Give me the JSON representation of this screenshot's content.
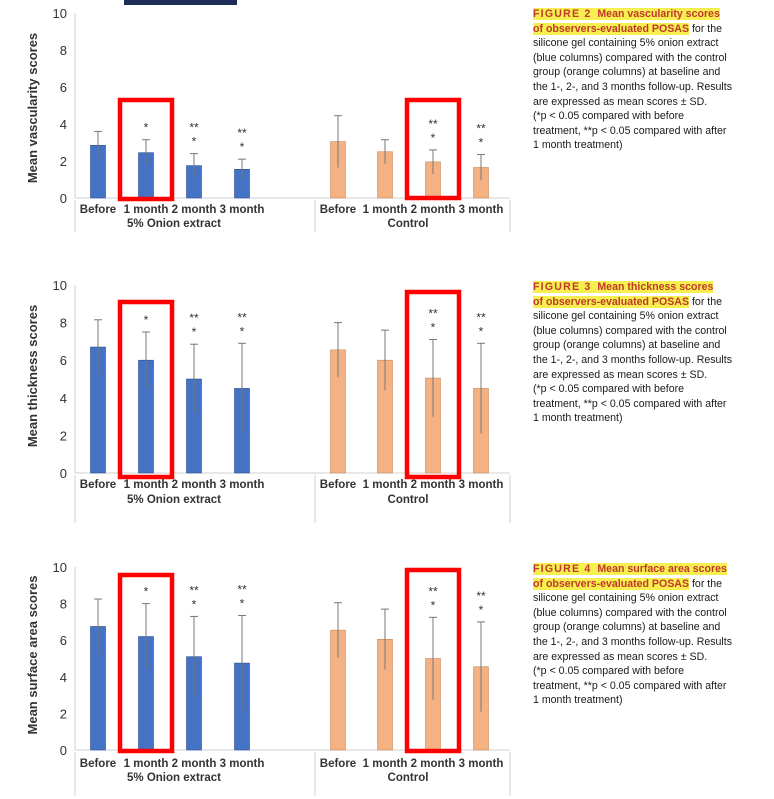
{
  "chart_data": [
    {
      "type": "bar",
      "ylabel": "Mean vascularity scores",
      "ylim": [
        0,
        10
      ],
      "yticks": [
        0,
        2,
        4,
        6,
        8,
        10
      ],
      "group_names": [
        "5% Onion extract",
        "Control"
      ],
      "categories": [
        "Before",
        "1 month",
        "2 month",
        "3 month"
      ],
      "series": [
        {
          "group": "5% Onion extract",
          "color": "#4472c4",
          "values": [
            2.85,
            2.45,
            1.75,
            1.55
          ],
          "sd": [
            0.75,
            0.7,
            0.65,
            0.55
          ],
          "annotations": [
            "",
            "*",
            "**\n*",
            "**\n*"
          ]
        },
        {
          "group": "Control",
          "color": "#f4b183",
          "values": [
            3.05,
            2.5,
            1.95,
            1.65
          ],
          "sd": [
            1.4,
            0.65,
            0.65,
            0.7
          ],
          "annotations": [
            "",
            "",
            "**\n*",
            "**\n*"
          ]
        }
      ],
      "highlighted": [
        "1 month (5% Onion extract)",
        "2 month (Control)"
      ],
      "grid": false
    },
    {
      "type": "bar",
      "ylabel": "Mean thickness scores",
      "ylim": [
        0,
        10
      ],
      "yticks": [
        0,
        2,
        4,
        6,
        8,
        10
      ],
      "group_names": [
        "5% Onion extract",
        "Control"
      ],
      "categories": [
        "Before",
        "1 month",
        "2 month",
        "3 month"
      ],
      "series": [
        {
          "group": "5% Onion extract",
          "color": "#4472c4",
          "values": [
            6.7,
            6.0,
            5.0,
            4.5
          ],
          "sd": [
            1.45,
            1.5,
            1.85,
            2.4
          ],
          "annotations": [
            "",
            "*",
            "**\n*",
            "**\n*"
          ]
        },
        {
          "group": "Control",
          "color": "#f4b183",
          "values": [
            6.55,
            6.0,
            5.05,
            4.5
          ],
          "sd": [
            1.45,
            1.6,
            2.05,
            2.4
          ],
          "annotations": [
            "",
            "",
            "**\n*",
            "**\n*"
          ]
        }
      ],
      "highlighted": [
        "1 month (5% Onion extract)",
        "2 month (Control)"
      ],
      "grid": false
    },
    {
      "type": "bar",
      "ylabel": "Mean surface area scores",
      "ylim": [
        0,
        10
      ],
      "yticks": [
        0,
        2,
        4,
        6,
        8,
        10
      ],
      "group_names": [
        "5% Onion extract",
        "Control"
      ],
      "categories": [
        "Before",
        "1 month",
        "2 month",
        "3 month"
      ],
      "series": [
        {
          "group": "5% Onion extract",
          "color": "#4472c4",
          "values": [
            6.75,
            6.2,
            5.1,
            4.75
          ],
          "sd": [
            1.5,
            1.8,
            2.2,
            2.6
          ],
          "annotations": [
            "",
            "*",
            "**\n*",
            "**\n*"
          ]
        },
        {
          "group": "Control",
          "color": "#f4b183",
          "values": [
            6.55,
            6.05,
            5.0,
            4.55
          ],
          "sd": [
            1.5,
            1.65,
            2.25,
            2.45
          ],
          "annotations": [
            "",
            "",
            "**\n*",
            "**\n*"
          ]
        }
      ],
      "highlighted": [
        "1 month (5% Onion extract)",
        "2 month (Control)"
      ],
      "grid": false
    }
  ],
  "captions": [
    {
      "fig": "FIGURE 2",
      "title_a": "Mean vascularity scores",
      "title_b": "of observers-evaluated POSAS",
      "l1": "for the",
      "l2": "silicone gel containing 5% onion extract",
      "l3": "(blue columns) compared with the control",
      "l4": "group (orange columns) at baseline and",
      "l5": "the 1-, 2-, and 3 months follow-up. Results",
      "l6": "are expressed as mean scores ± SD.",
      "l7": "(*p < 0.05 compared with before",
      "l8": "treatment, **p < 0.05 compared with after",
      "l9": "1 month treatment)"
    },
    {
      "fig": "FIGURE 3",
      "title_a": "Mean thickness scores",
      "title_b": "of observers-evaluated POSAS",
      "l1": "for the",
      "l2": "silicone gel containing 5% onion extract",
      "l3": "(blue columns) compared with the control",
      "l4": "group (orange columns) at baseline and",
      "l5": "the 1-, 2-, and 3 months follow-up. Results",
      "l6": "are expressed as mean scores ± SD.",
      "l7": "(*p < 0.05 compared with before",
      "l8": "treatment, **p < 0.05 compared with after",
      "l9": "1 month treatment)"
    },
    {
      "fig": "FIGURE 4",
      "title_a": "Mean surface area scores",
      "title_b": "of observers-evaluated POSAS",
      "l1": "for the",
      "l2": "silicone gel containing 5% onion extract",
      "l3": "(blue columns) compared with the control",
      "l4": "group (orange columns) at baseline and",
      "l5": "the 1-, 2-, and 3 months follow-up. Results",
      "l6": "are expressed as mean scores ± SD.",
      "l7": "(*p < 0.05 compared with before",
      "l8": "treatment, **p < 0.05 compared with after",
      "l9": "1 month treatment)"
    }
  ]
}
